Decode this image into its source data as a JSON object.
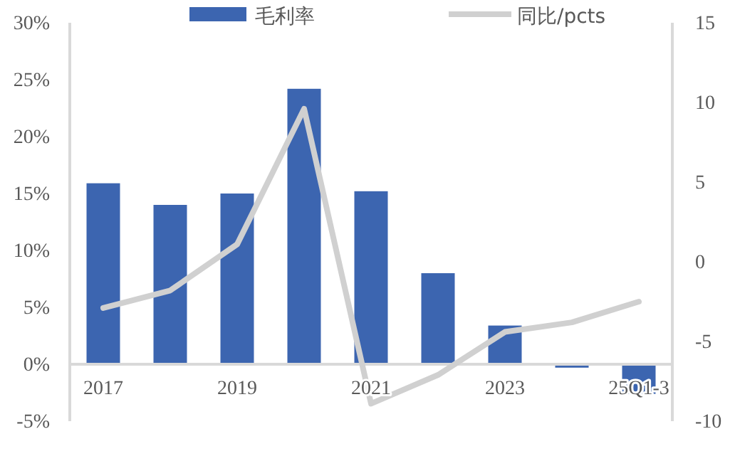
{
  "chart_data": {
    "type": "bar",
    "categories": [
      "2017",
      null,
      "2019",
      null,
      "2021",
      null,
      "2023",
      null,
      "25Q1-3"
    ],
    "series": [
      {
        "name": "毛利率",
        "color": "#3c65b0",
        "values": [
          15.9,
          14.0,
          15.0,
          24.2,
          15.2,
          8.0,
          3.4,
          -0.3,
          -2.6
        ]
      },
      {
        "name": "同比/pcts",
        "type": "line",
        "axis": "y2",
        "color": "#d0d0d0",
        "values": [
          -2.9,
          -1.8,
          1.1,
          9.6,
          -8.9,
          -7.1,
          -4.4,
          -3.8,
          -2.5
        ]
      }
    ],
    "ylim": [
      -5,
      30
    ],
    "yticks": [
      {
        "value": -5,
        "label": "-5%"
      },
      {
        "value": 0,
        "label": "0%"
      },
      {
        "value": 5,
        "label": "5%"
      },
      {
        "value": 10,
        "label": "10%"
      },
      {
        "value": 15,
        "label": "15%"
      },
      {
        "value": 20,
        "label": "20%"
      },
      {
        "value": 25,
        "label": "25%"
      },
      {
        "value": 30,
        "label": "30%"
      }
    ],
    "y2lim": [
      -10,
      15
    ],
    "y2ticks": [
      -10,
      -5,
      0,
      5,
      10,
      15
    ],
    "legend": "top",
    "grid": false
  }
}
